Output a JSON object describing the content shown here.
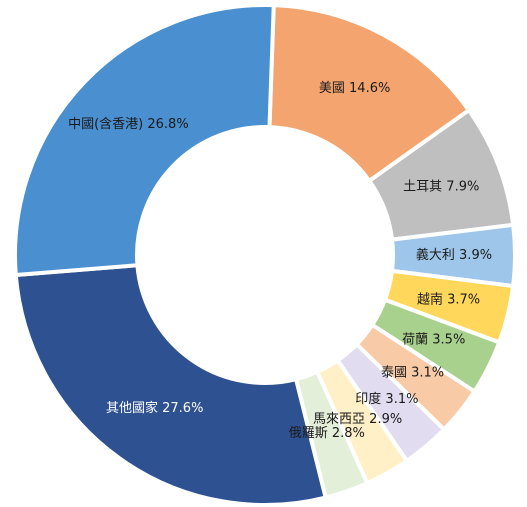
{
  "chart_data": {
    "type": "pie",
    "variant": "donut",
    "title": "",
    "legend": "none",
    "slices": [
      {
        "label": "美國 14.6%",
        "value": 14.6,
        "color": "#f4a56f",
        "label_color": "#1a1a1a"
      },
      {
        "label": "土耳其 7.9%",
        "value": 7.9,
        "color": "#bfbfbf",
        "label_color": "#1a1a1a"
      },
      {
        "label": "義大利 3.9%",
        "value": 3.9,
        "color": "#9ec6ea",
        "label_color": "#1a1a1a"
      },
      {
        "label": "越南 3.7%",
        "value": 3.7,
        "color": "#ffd75a",
        "label_color": "#1a1a1a"
      },
      {
        "label": "荷蘭 3.5%",
        "value": 3.5,
        "color": "#a9d18e",
        "label_color": "#1a1a1a"
      },
      {
        "label": "泰國 3.1%",
        "value": 3.1,
        "color": "#f8caa6",
        "label_color": "#1a1a1a"
      },
      {
        "label": "印度 3.1%",
        "value": 3.1,
        "color": "#e2dcf1",
        "label_color": "#1a1a1a"
      },
      {
        "label": "馬來西亞 2.9%",
        "value": 2.9,
        "color": "#fff0c8",
        "label_color": "#1a1a1a"
      },
      {
        "label": "俄羅斯 2.8%",
        "value": 2.8,
        "color": "#e3efd9",
        "label_color": "#1a1a1a"
      },
      {
        "label": "其他國家 27.6%",
        "value": 27.6,
        "color": "#2e5291",
        "label_color": "#ffffff"
      },
      {
        "label": "中國(含香港) 26.8%",
        "value": 26.8,
        "color": "#4a8fcf",
        "label_color": "#1a1a1a"
      }
    ]
  }
}
